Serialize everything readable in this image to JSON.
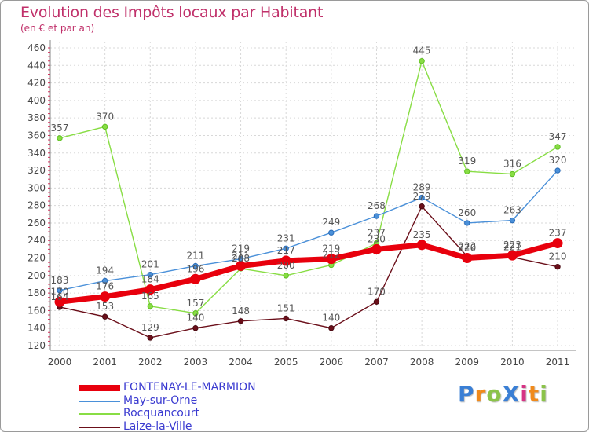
{
  "title": "Evolution des Impôts locaux par Habitant",
  "subtitle": "(en € et par an)",
  "logo": {
    "text": "ProXiti",
    "letters": [
      "P",
      "r",
      "o",
      "X",
      "i",
      "t",
      "i"
    ],
    "colors": [
      "#3a7fd5",
      "#f08a1c",
      "#8bc34a",
      "#3a7fd5",
      "#d63384",
      "#f08a1c",
      "#8bc34a"
    ]
  },
  "chart_data": {
    "type": "line",
    "categories": [
      "2000",
      "2001",
      "2002",
      "2003",
      "2004",
      "2005",
      "2006",
      "2007",
      "2008",
      "2009",
      "2010",
      "2011"
    ],
    "ylim": [
      120,
      460
    ],
    "yticks": [
      120,
      140,
      160,
      180,
      200,
      220,
      240,
      260,
      280,
      300,
      320,
      340,
      360,
      380,
      400,
      420,
      440,
      460
    ],
    "grid": true,
    "legend_position": "bottom-left",
    "series": [
      {
        "name": "FONTENAY-LE-MARMION",
        "color": "#e8000d",
        "values": [
          170,
          176,
          184,
          196,
          211,
          217,
          219,
          230,
          235,
          220,
          223,
          237
        ]
      },
      {
        "name": "May-sur-Orne",
        "color": "#4a90d9",
        "values": [
          183,
          194,
          201,
          211,
          219,
          231,
          249,
          268,
          289,
          260,
          263,
          320
        ]
      },
      {
        "name": "Rocquancourt",
        "color": "#88dd44",
        "values": [
          357,
          370,
          165,
          157,
          208,
          200,
          212,
          237,
          445,
          319,
          316,
          347
        ]
      },
      {
        "name": "Laize-la-Ville",
        "color": "#6b0f1a",
        "values": [
          164,
          153,
          129,
          140,
          148,
          151,
          140,
          170,
          279,
          222,
          221,
          210
        ]
      }
    ]
  }
}
